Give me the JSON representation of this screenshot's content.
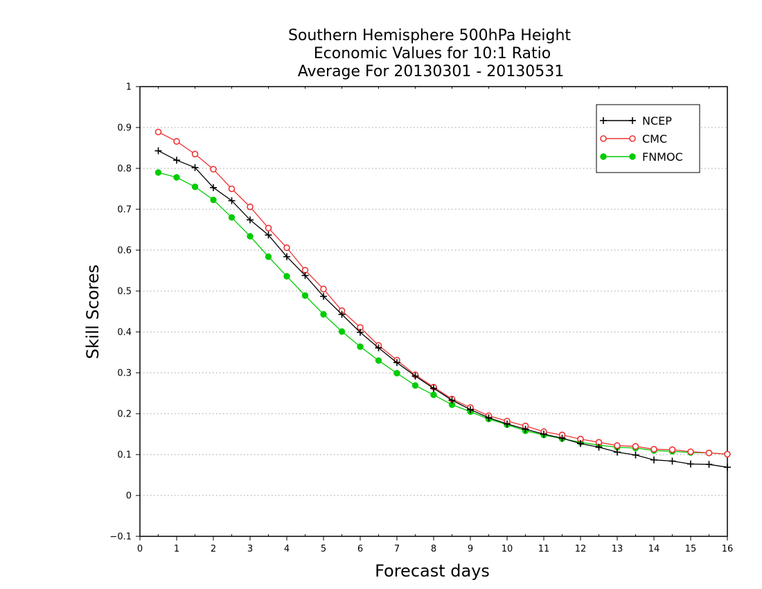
{
  "chart_data": {
    "type": "line",
    "title_lines": [
      "Southern Hemisphere 500hPa Height",
      "Economic Values for 10:1 Ratio",
      "Average For 20130301 - 20130531"
    ],
    "xlabel": "Forecast days",
    "ylabel": "Skill Scores",
    "xlim": [
      0,
      16
    ],
    "ylim": [
      -0.1,
      1
    ],
    "x_ticks": [
      "0",
      "1",
      "2",
      "3",
      "4",
      "5",
      "6",
      "7",
      "8",
      "9",
      "10",
      "11",
      "12",
      "13",
      "14",
      "15",
      "16"
    ],
    "y_ticks": [
      "−0.1",
      "0",
      "0.1",
      "0.2",
      "0.3",
      "0.4",
      "0.5",
      "0.6",
      "0.7",
      "0.8",
      "0.9",
      "1"
    ],
    "grid": "horizontal dotted",
    "legend_position": "top-right",
    "x": [
      0.5,
      1,
      1.5,
      2,
      2.5,
      3,
      3.5,
      4,
      4.5,
      5,
      5.5,
      6,
      6.5,
      7,
      7.5,
      8,
      8.5,
      9,
      9.5,
      10,
      10.5,
      11,
      11.5,
      12,
      12.5,
      13,
      13.5,
      14,
      14.5,
      15,
      15.5,
      16
    ],
    "series": [
      {
        "name": "NCEP",
        "color": "#000000",
        "marker": "plus",
        "values": [
          0.843,
          0.82,
          0.802,
          0.753,
          0.721,
          0.674,
          0.637,
          0.584,
          0.538,
          0.487,
          0.443,
          0.399,
          0.361,
          0.325,
          0.292,
          0.262,
          0.233,
          0.21,
          0.19,
          0.175,
          0.162,
          0.15,
          0.14,
          0.127,
          0.118,
          0.106,
          0.099,
          0.087,
          0.084,
          0.077,
          0.076,
          0.069
        ]
      },
      {
        "name": "CMC",
        "color": "#ee3333",
        "marker": "open-circle",
        "values": [
          0.889,
          0.866,
          0.835,
          0.798,
          0.75,
          0.706,
          0.654,
          0.606,
          0.551,
          0.505,
          0.452,
          0.411,
          0.367,
          0.331,
          0.295,
          0.265,
          0.236,
          0.215,
          0.195,
          0.182,
          0.17,
          0.156,
          0.148,
          0.138,
          0.13,
          0.122,
          0.12,
          0.113,
          0.112,
          0.107,
          0.104,
          0.101
        ]
      },
      {
        "name": "FNMOC",
        "color": "#00cc00",
        "marker": "filled-circle",
        "values": [
          0.79,
          0.778,
          0.755,
          0.723,
          0.68,
          0.634,
          0.584,
          0.536,
          0.489,
          0.443,
          0.401,
          0.364,
          0.33,
          0.299,
          0.269,
          0.246,
          0.222,
          0.205,
          0.187,
          0.173,
          0.158,
          0.148,
          0.139,
          0.13,
          0.123,
          0.118,
          0.116,
          0.11,
          0.108,
          0.105,
          0.104,
          0.101
        ]
      }
    ]
  }
}
